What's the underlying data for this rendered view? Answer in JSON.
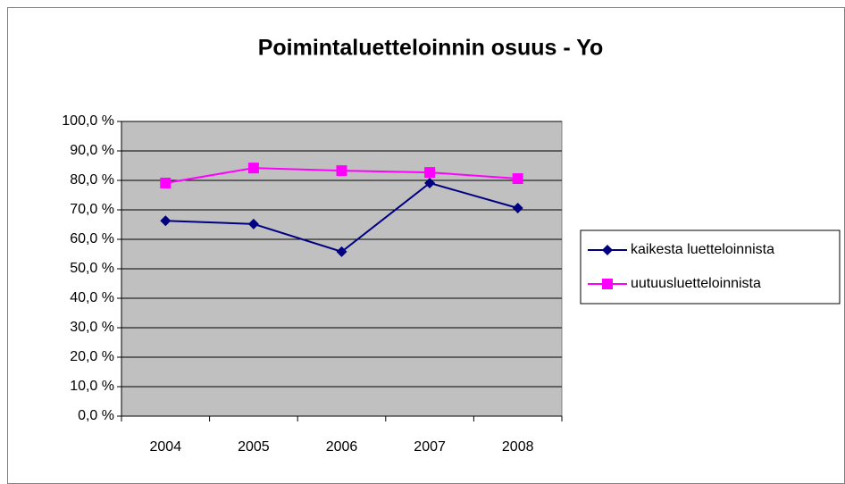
{
  "chart_data": {
    "type": "line",
    "title": "Poimintaluetteloinnin osuus - Yo",
    "categories": [
      "2004",
      "2005",
      "2006",
      "2007",
      "2008"
    ],
    "series": [
      {
        "name": "kaikesta luetteloinnista",
        "color": "#000080",
        "marker": "diamond",
        "values": [
          66.3,
          65.2,
          55.8,
          79.1,
          70.6
        ]
      },
      {
        "name": "uutuusluetteloinnista",
        "color": "#ff00ff",
        "marker": "square",
        "values": [
          79.1,
          84.2,
          83.3,
          82.7,
          80.6
        ]
      }
    ],
    "ylim": [
      0,
      100
    ],
    "yticks": [
      {
        "value": 0,
        "label": "0,0 %"
      },
      {
        "value": 10,
        "label": "10,0 %"
      },
      {
        "value": 20,
        "label": "20,0 %"
      },
      {
        "value": 30,
        "label": "30,0 %"
      },
      {
        "value": 40,
        "label": "40,0 %"
      },
      {
        "value": 50,
        "label": "50,0 %"
      },
      {
        "value": 60,
        "label": "60,0 %"
      },
      {
        "value": 70,
        "label": "70,0 %"
      },
      {
        "value": 80,
        "label": "80,0 %"
      },
      {
        "value": 90,
        "label": "90,0 %"
      },
      {
        "value": 100,
        "label": "100,0 %"
      }
    ],
    "grid": true,
    "legend": "right",
    "plot_background": "#c0c0c0"
  }
}
